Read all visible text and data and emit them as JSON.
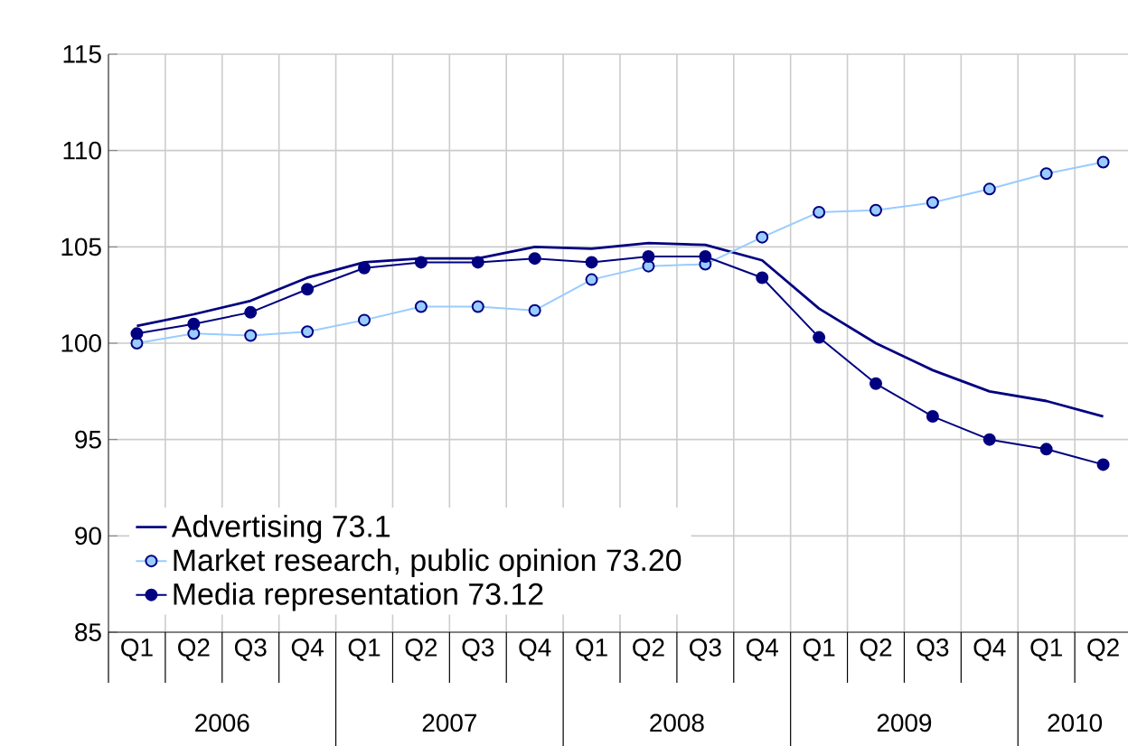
{
  "chart_data": {
    "type": "line",
    "categories": [
      "Q1",
      "Q2",
      "Q3",
      "Q4",
      "Q1",
      "Q2",
      "Q3",
      "Q4",
      "Q1",
      "Q2",
      "Q3",
      "Q4",
      "Q1",
      "Q2",
      "Q3",
      "Q4",
      "Q1",
      "Q2"
    ],
    "series": [
      {
        "name": "Advertising 73.1",
        "color": "#000080",
        "marker": "none",
        "values": [
          100.9,
          101.5,
          102.2,
          103.4,
          104.2,
          104.4,
          104.4,
          105.0,
          104.9,
          105.2,
          105.1,
          104.3,
          101.8,
          100.0,
          98.6,
          97.5,
          97.0,
          96.2
        ]
      },
      {
        "name": "Market research, public opinion 73.20",
        "color": "#99ccff",
        "marker": "circle",
        "values": [
          100.0,
          100.5,
          100.4,
          100.6,
          101.2,
          101.9,
          101.9,
          101.7,
          103.3,
          104.0,
          104.1,
          105.5,
          106.8,
          106.9,
          107.3,
          108.0,
          108.8,
          109.4
        ]
      },
      {
        "name": "Media representation 73.12",
        "color": "#000080",
        "marker": "circle",
        "values": [
          100.5,
          101.0,
          101.6,
          102.8,
          103.9,
          104.2,
          104.2,
          104.4,
          104.2,
          104.5,
          104.5,
          103.4,
          100.3,
          97.9,
          96.2,
          95.0,
          94.5,
          93.7
        ]
      }
    ],
    "ylim": [
      85,
      115
    ],
    "yticks": [
      85,
      90,
      95,
      100,
      105,
      110,
      115
    ],
    "grid": true,
    "legend": "bottom left",
    "annotations": [
      "2006",
      "2007",
      "2008",
      "2009",
      "2010"
    ]
  }
}
